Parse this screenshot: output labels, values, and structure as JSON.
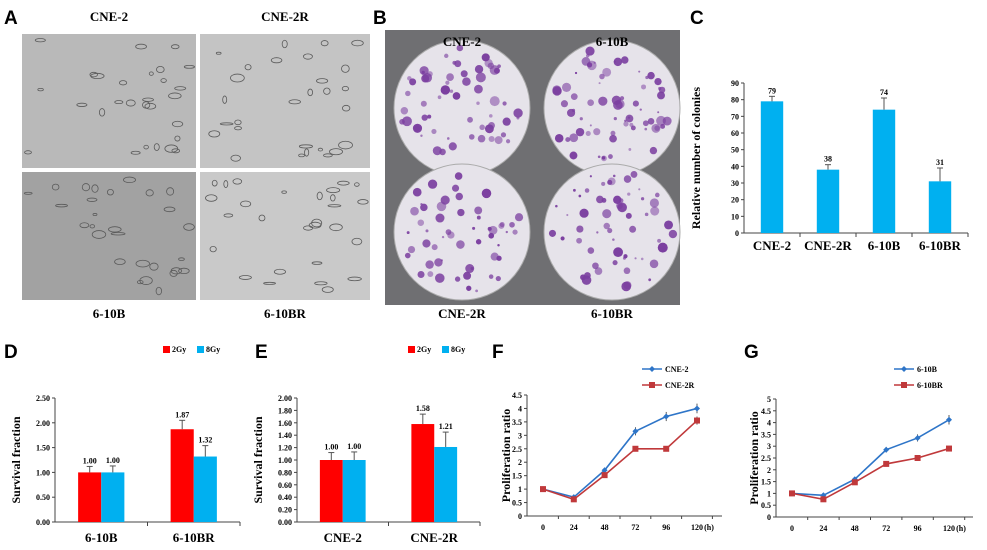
{
  "panels": {
    "A": {
      "letter": "A",
      "labels": [
        "CNE-2",
        "CNE-2R",
        "6-10B",
        "6-10BR"
      ]
    },
    "B": {
      "letter": "B",
      "labels": [
        "CNE-2",
        "6-10B",
        "CNE-2R",
        "6-10BR"
      ]
    },
    "C": {
      "letter": "C"
    },
    "D": {
      "letter": "D"
    },
    "E": {
      "letter": "E"
    },
    "F": {
      "letter": "F"
    },
    "G": {
      "letter": "G"
    }
  },
  "colors": {
    "blue_bar": "#00b0f0",
    "red_bar": "#ff0000",
    "line_blue": "#2e75c8",
    "line_red": "#c0393b",
    "stain": "#7b3fa0"
  },
  "chart_data": [
    {
      "panel": "C",
      "type": "bar",
      "ylabel": "Relative number of colonies",
      "ylim": [
        0,
        90
      ],
      "ystep": 10,
      "ydecimals": 0,
      "categories": [
        "CNE-2",
        "CNE-2R",
        "6-10B",
        "6-10BR"
      ],
      "series": [
        {
          "name": "colonies",
          "values": [
            79,
            38,
            74,
            31
          ],
          "errors": [
            3,
            3,
            7,
            8
          ],
          "labels": [
            "79",
            "38",
            "74",
            "31"
          ]
        }
      ]
    },
    {
      "panel": "D",
      "type": "bar",
      "ylabel": "Survival fraction",
      "ylim": [
        0,
        2.5
      ],
      "ystep": 0.5,
      "ydecimals": 2,
      "categories": [
        "6-10B",
        "6-10BR"
      ],
      "series": [
        {
          "name": "2Gy",
          "values": [
            1.0,
            1.87
          ],
          "errors": [
            0.12,
            0.18
          ],
          "labels": [
            "1.00",
            "1.87"
          ]
        },
        {
          "name": "8Gy",
          "values": [
            1.0,
            1.32
          ],
          "errors": [
            0.13,
            0.22
          ],
          "labels": [
            "1.00",
            "1.32"
          ]
        }
      ]
    },
    {
      "panel": "E",
      "type": "bar",
      "ylabel": "Survival fraction",
      "ylim": [
        0,
        2.0
      ],
      "ystep": 0.2,
      "ydecimals": 2,
      "categories": [
        "CNE-2",
        "CNE-2R"
      ],
      "series": [
        {
          "name": "2Gy",
          "values": [
            1.0,
            1.58
          ],
          "errors": [
            0.12,
            0.16
          ],
          "labels": [
            "1.00",
            "1.58"
          ]
        },
        {
          "name": "8Gy",
          "values": [
            1.0,
            1.21
          ],
          "errors": [
            0.13,
            0.24
          ],
          "labels": [
            "1.00",
            "1.21"
          ]
        }
      ]
    },
    {
      "panel": "F",
      "type": "line",
      "ylabel": "Proliferation ratio",
      "ylim": [
        0,
        4.5
      ],
      "ystep": 0.5,
      "xunit": "(h)",
      "x": [
        0,
        24,
        48,
        72,
        96,
        120
      ],
      "series": [
        {
          "name": "CNE-2",
          "values": [
            1.0,
            0.7,
            1.7,
            3.15,
            3.7,
            4.0
          ],
          "errors": [
            0.03,
            0.03,
            0.1,
            0.15,
            0.17,
            0.18
          ]
        },
        {
          "name": "CNE-2R",
          "values": [
            1.0,
            0.62,
            1.52,
            2.5,
            2.5,
            3.55
          ],
          "errors": [
            0.03,
            0.03,
            0.08,
            0.05,
            0.05,
            0.15
          ]
        }
      ]
    },
    {
      "panel": "G",
      "type": "line",
      "ylabel": "Proliferation ratio",
      "ylim": [
        0,
        5
      ],
      "ystep": 0.5,
      "xunit": "(h)",
      "x": [
        0,
        24,
        48,
        72,
        96,
        120
      ],
      "series": [
        {
          "name": "6-10B",
          "values": [
            1.0,
            0.92,
            1.6,
            2.85,
            3.35,
            4.12
          ],
          "errors": [
            0.03,
            0.03,
            0.06,
            0.12,
            0.15,
            0.2
          ]
        },
        {
          "name": "6-10BR",
          "values": [
            1.0,
            0.75,
            1.47,
            2.25,
            2.5,
            2.9
          ],
          "errors": [
            0.03,
            0.03,
            0.05,
            0.05,
            0.08,
            0.1
          ]
        }
      ]
    }
  ]
}
